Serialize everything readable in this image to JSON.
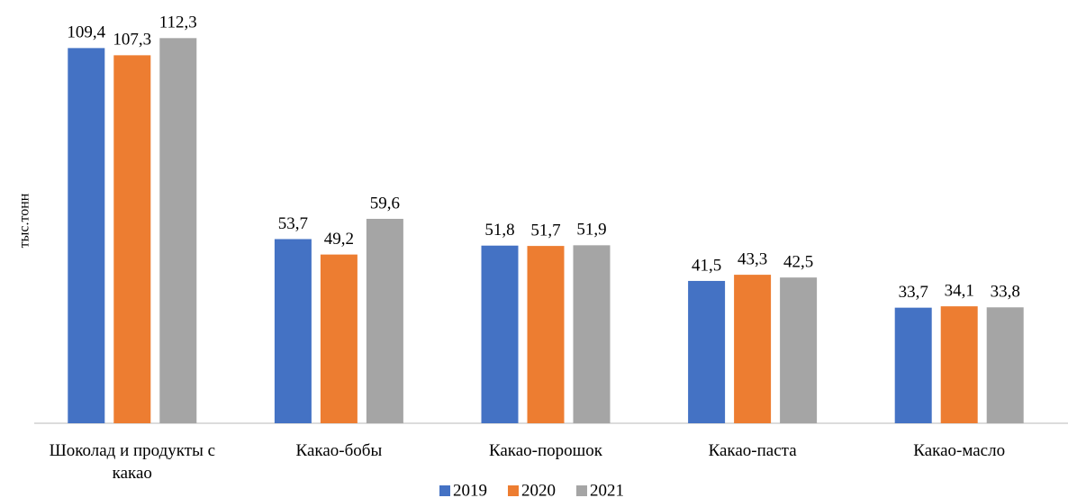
{
  "chart_data": {
    "type": "bar",
    "y_label": "тыс.тонн",
    "categories": [
      "Шоколад и продукты с какао",
      "Какао-бобы",
      "Какао-порошок",
      "Какао-паста",
      "Какао-масло"
    ],
    "series": [
      {
        "name": "2019",
        "color": "#4472c4",
        "values": [
          109.4,
          53.7,
          51.8,
          41.5,
          33.7
        ],
        "value_labels": [
          "109,4",
          "53,7",
          "51,8",
          "41,5",
          "33,7"
        ]
      },
      {
        "name": "2020",
        "color": "#ed7d31",
        "values": [
          107.3,
          49.2,
          51.7,
          43.3,
          34.1
        ],
        "value_labels": [
          "107,3",
          "49,2",
          "51,7",
          "43,3",
          "34,1"
        ]
      },
      {
        "name": "2021",
        "color": "#a5a5a5",
        "values": [
          112.3,
          59.6,
          51.9,
          42.5,
          33.8
        ],
        "value_labels": [
          "112,3",
          "59,6",
          "51,9",
          "42,5",
          "33,8"
        ]
      }
    ],
    "ylim": [
      0,
      120
    ],
    "legend": "bottom"
  }
}
